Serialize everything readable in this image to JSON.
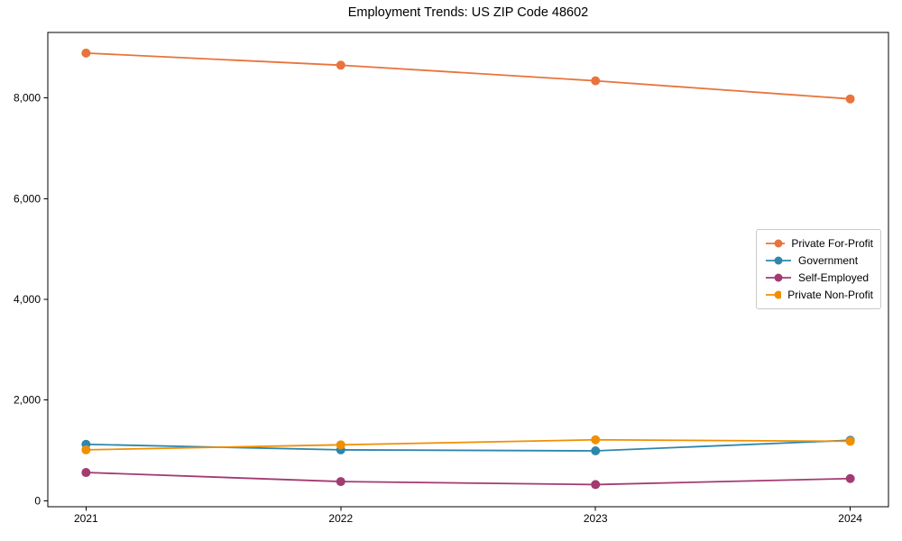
{
  "figure": {
    "background": "#ffffff",
    "axis_color": "#000000"
  },
  "chart_data": {
    "type": "line",
    "title": "Employment Trends: US ZIP Code 48602",
    "xlabel": "",
    "ylabel": "",
    "categories": [
      "2021",
      "2022",
      "2023",
      "2024"
    ],
    "x_values": [
      2021,
      2022,
      2023,
      2024
    ],
    "xlim": [
      2020.85,
      2024.15
    ],
    "ylim": [
      -120,
      9300
    ],
    "yticks": [
      0,
      2000,
      4000,
      6000,
      8000
    ],
    "ytick_labels": [
      "0",
      "2,000",
      "4,000",
      "6,000",
      "8,000"
    ],
    "grid": false,
    "legend_position": "center-right",
    "marker": "circle",
    "series": [
      {
        "name": "Private For-Profit",
        "color": "#E8743B",
        "values": [
          8890,
          8650,
          8340,
          7980
        ]
      },
      {
        "name": "Government",
        "color": "#2E86AB",
        "values": [
          1120,
          1010,
          990,
          1200
        ]
      },
      {
        "name": "Self-Employed",
        "color": "#A23B72",
        "values": [
          560,
          380,
          320,
          440
        ]
      },
      {
        "name": "Private Non-Profit",
        "color": "#F18F01",
        "values": [
          1010,
          1110,
          1210,
          1180
        ]
      }
    ]
  }
}
